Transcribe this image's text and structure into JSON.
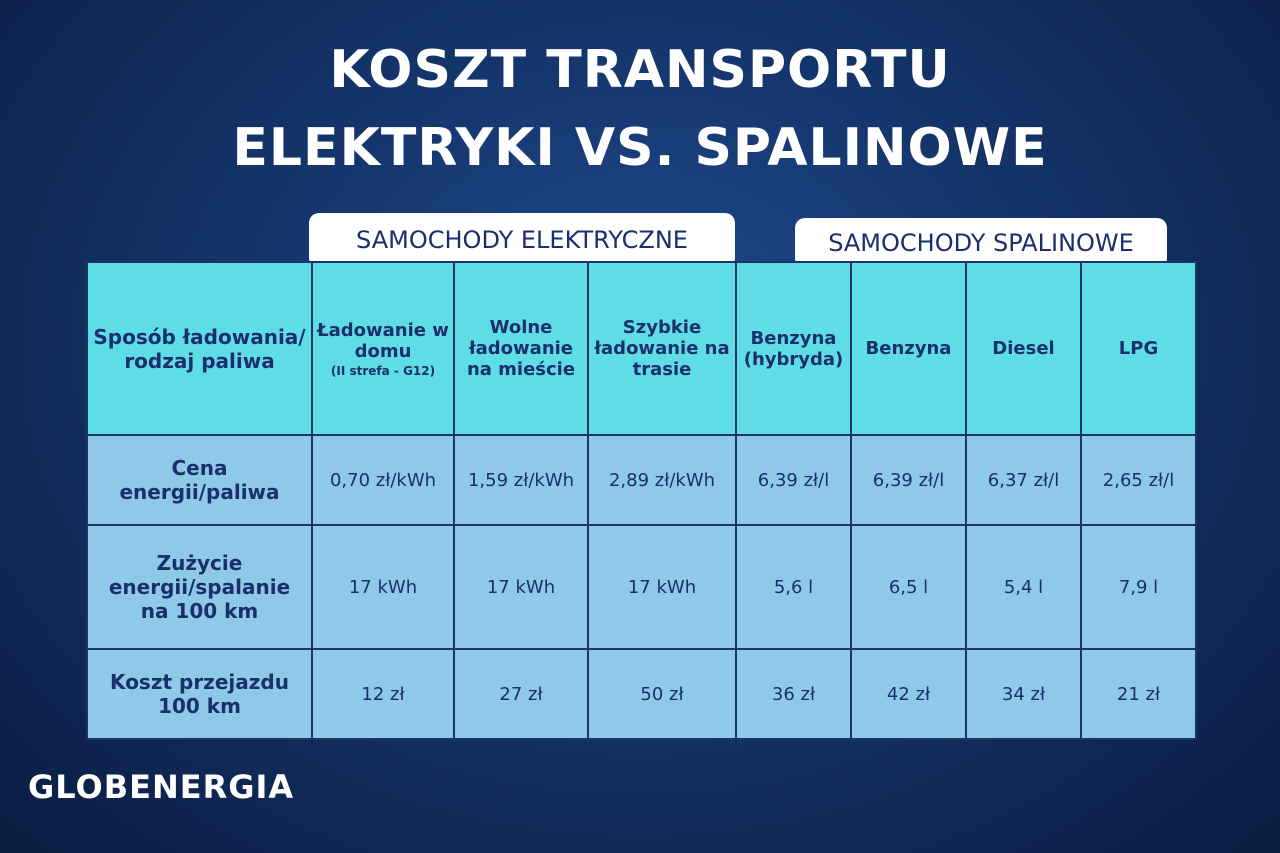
{
  "title": [
    "KOSZT TRANSPORTU",
    "ELEKTRYKI VS. SPALINOWE"
  ],
  "groups": [
    "SAMOCHODY ELEKTRYCZNE",
    "SAMOCHODY SPALINOWE"
  ],
  "table": {
    "header": [
      "Sposób ładowania/ rodzaj paliwa",
      "Ładowanie w domu",
      "Wolne ładowanie na mieście",
      "Szybkie ładowanie na trasie",
      "Benzyna (hybryda)",
      "Benzyna",
      "Diesel",
      "LPG"
    ],
    "header_note": "(II strefa - G12)",
    "rows": [
      [
        "Cena energii/paliwa",
        "0,70 zł/kWh",
        "1,59 zł/kWh",
        "2,89 zł/kWh",
        "6,39 zł/l",
        "6,39 zł/l",
        "6,37 zł/l",
        "2,65 zł/l"
      ],
      [
        "Zużycie energii/spalanie na 100 km",
        "17 kWh",
        "17 kWh",
        "17 kWh",
        "5,6 l",
        "6,5 l",
        "5,4 l",
        "7,9 l"
      ],
      [
        "Koszt przejazdu 100 km",
        "12 zł",
        "27 zł",
        "50 zł",
        "36 zł",
        "42 zł",
        "34 zł",
        "21 zł"
      ]
    ]
  },
  "brand": "GLOBENERGIA"
}
